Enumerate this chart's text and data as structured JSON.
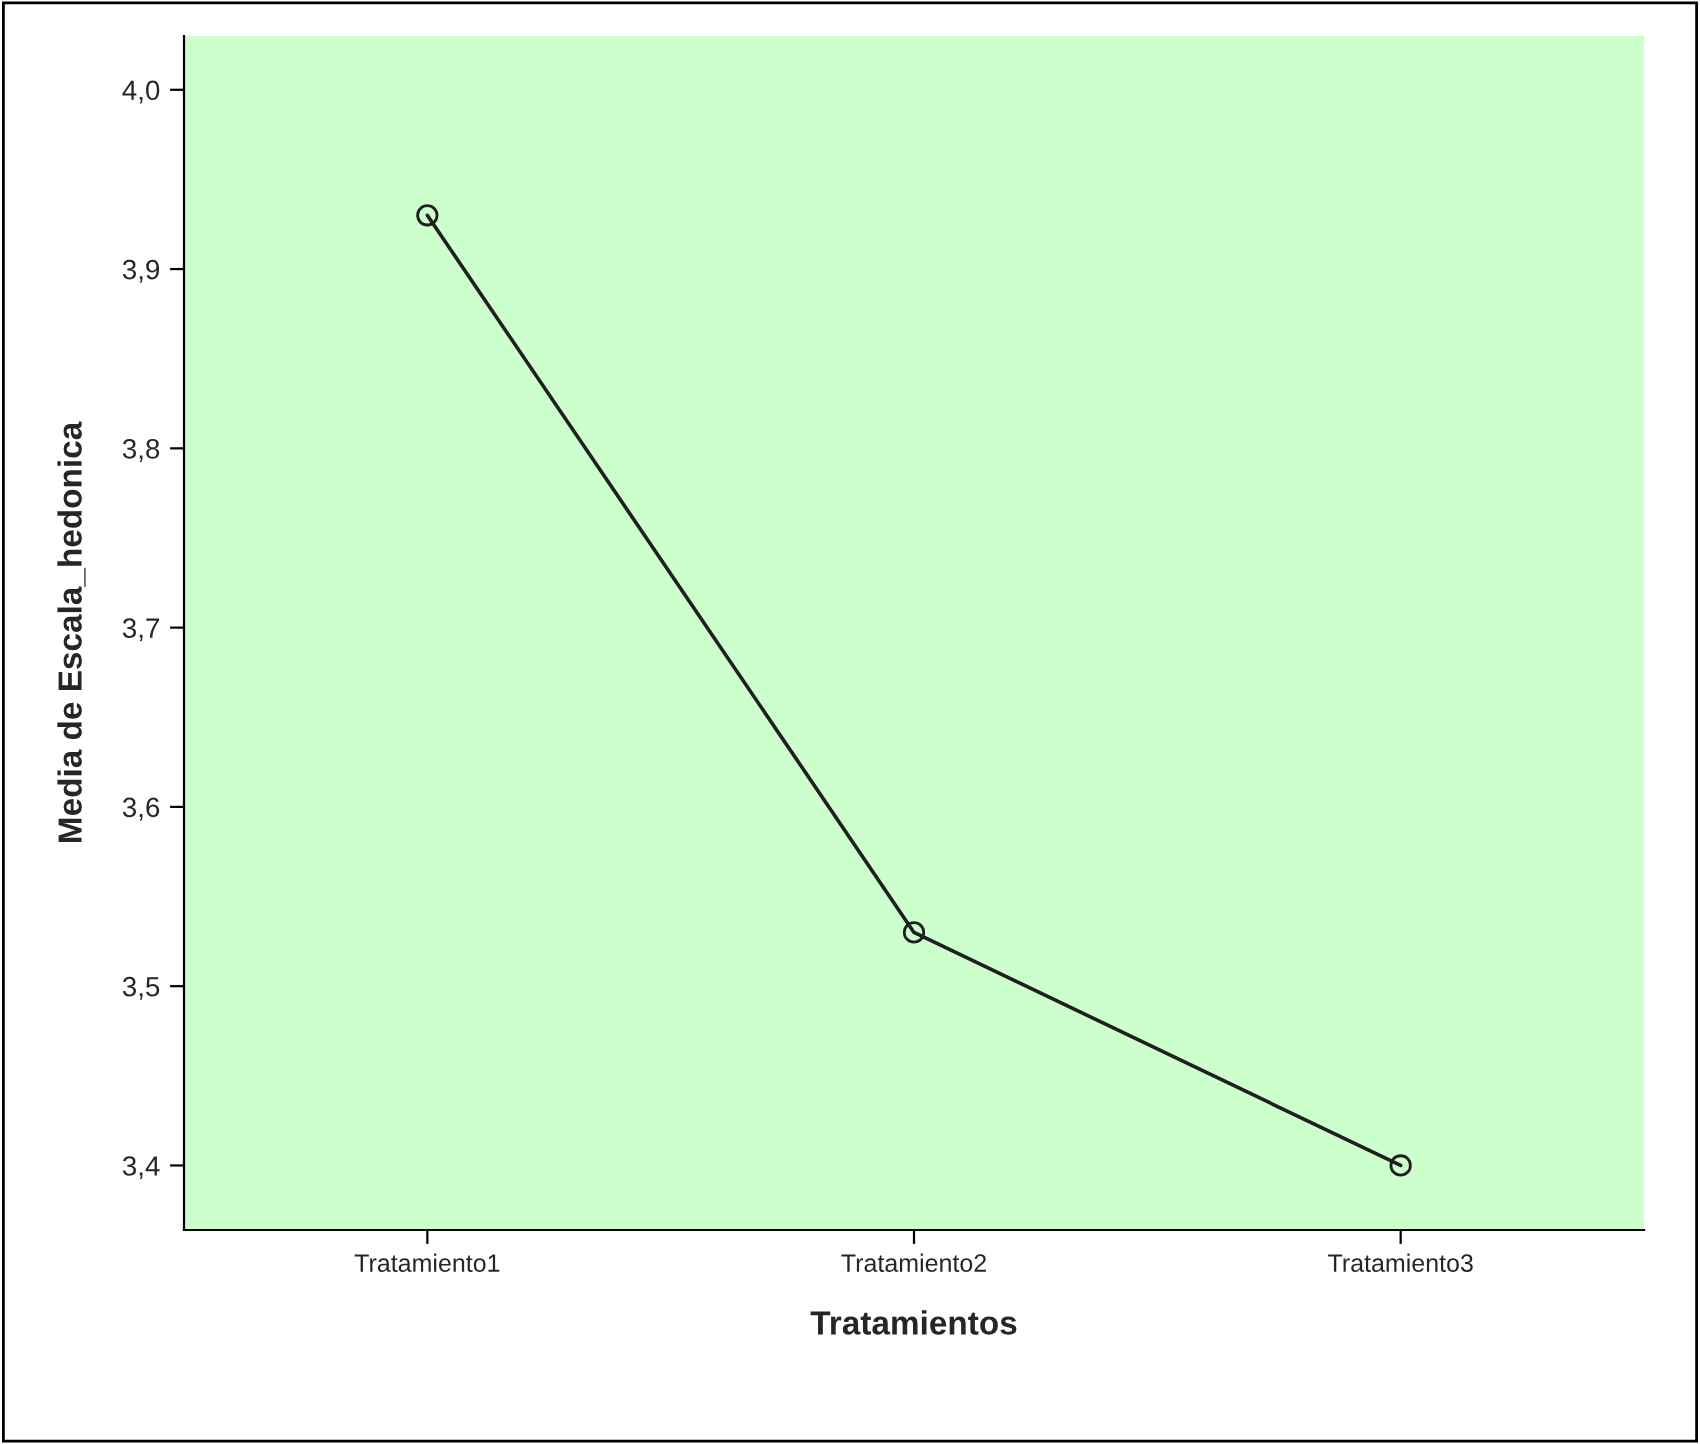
{
  "chart_data": {
    "type": "line",
    "xlabel": "Tratamientos",
    "ylabel": "Media de Escala_hedonica",
    "categories": [
      "Tratamiento1",
      "Tratamiento2",
      "Tratamiento3"
    ],
    "series": [
      {
        "color": "#1f1f1f",
        "values": [
          3.93,
          3.53,
          3.4
        ]
      }
    ],
    "marker": "circle",
    "line_style": "solid",
    "grid": false,
    "legend": false,
    "ylim": [
      3.364,
      4.03
    ],
    "yticks": [
      {
        "value": 3.4,
        "label": "3,4"
      },
      {
        "value": 3.5,
        "label": "3,5"
      },
      {
        "value": 3.6,
        "label": "3,6"
      },
      {
        "value": 3.7,
        "label": "3,7"
      },
      {
        "value": 3.8,
        "label": "3,8"
      },
      {
        "value": 3.9,
        "label": "3,9"
      },
      {
        "value": 4.0,
        "label": "4,0"
      }
    ]
  }
}
